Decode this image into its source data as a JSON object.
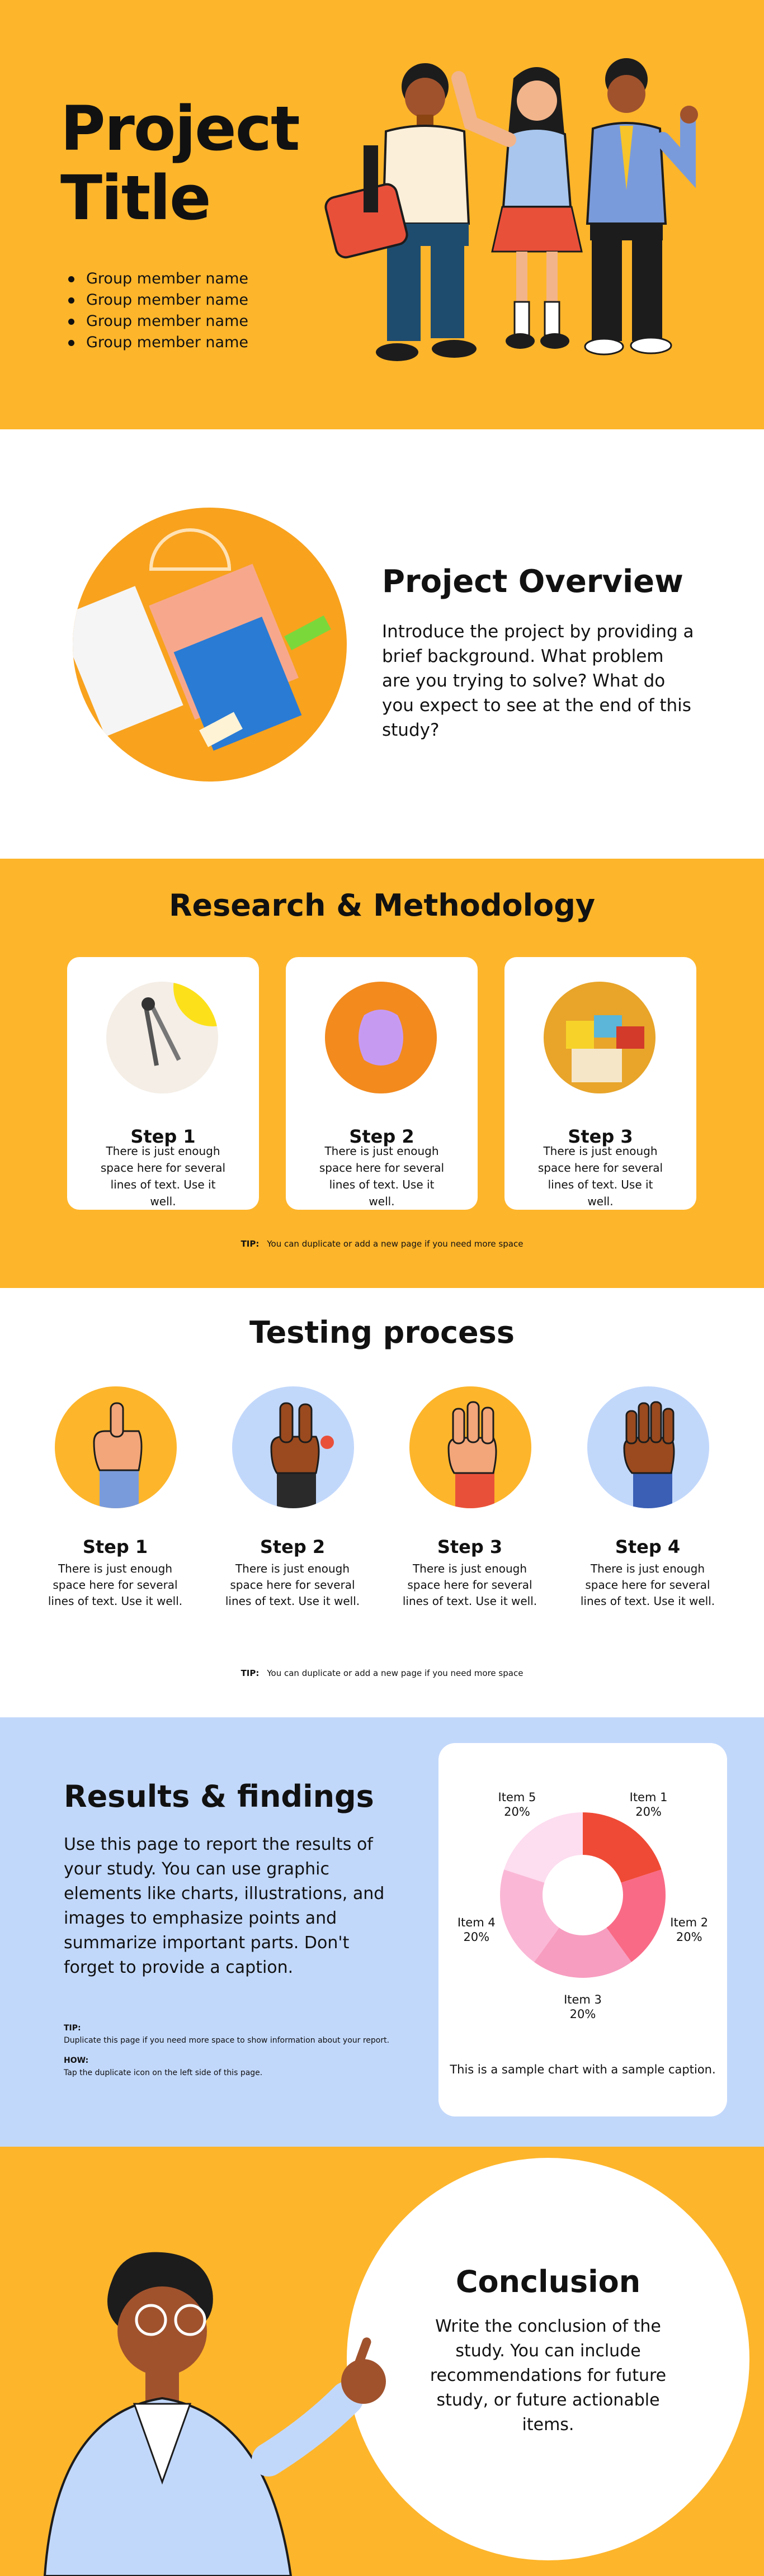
{
  "hero": {
    "title_line1": "Project",
    "title_line2": "Title",
    "members": [
      "Group member name",
      "Group member name",
      "Group member name",
      "Group member name"
    ]
  },
  "overview": {
    "title": "Project Overview",
    "text": "Introduce the project by providing a brief background. What problem are you trying to solve? What do you expect to see at the end of this study?"
  },
  "research": {
    "title": "Research & Methodology",
    "steps": [
      {
        "label": "Step 1",
        "text": "There is just enough space here for several lines of text. Use it well."
      },
      {
        "label": "Step 2",
        "text": "There is just enough space here for several lines of text. Use it well."
      },
      {
        "label": "Step 3",
        "text": "There is just enough space here for several lines of text. Use it well."
      }
    ],
    "tip_label": "TIP:",
    "tip_text": "You can duplicate or add a new page if you need more space"
  },
  "testing": {
    "title": "Testing process",
    "steps": [
      {
        "label": "Step 1",
        "text": "There is just enough space here for several lines of text. Use it well."
      },
      {
        "label": "Step 2",
        "text": "There is just enough space here for several lines of text. Use it well."
      },
      {
        "label": "Step 3",
        "text": "There is just enough space here for several lines of text. Use it well."
      },
      {
        "label": "Step 4",
        "text": "There is just enough space here for several lines of text. Use it well."
      }
    ],
    "tip_label": "TIP:",
    "tip_text": "You can duplicate or add a new page if you need more space"
  },
  "results": {
    "title": "Results & findings",
    "text": "Use this page to report the results of your study. You can use graphic elements like charts, illustrations, and images to emphasize points and summarize important parts. Don't forget to provide a caption.",
    "tip_label": "TIP:",
    "tip_text": "Duplicate this page if you need more space to show information about your report.",
    "how_label": "HOW:",
    "how_text": "Tap the duplicate icon on the left side of this page.",
    "caption": "This is a sample chart with a sample caption."
  },
  "chart_data": {
    "type": "pie",
    "categories": [
      "Item 1",
      "Item 2",
      "Item 3",
      "Item 4",
      "Item 5"
    ],
    "values": [
      20,
      20,
      20,
      20,
      20
    ],
    "value_labels": [
      "20%",
      "20%",
      "20%",
      "20%",
      "20%"
    ],
    "colors": [
      "#EF4A36",
      "#F96A86",
      "#F79DC0",
      "#FAB8D6",
      "#FDDDF0"
    ]
  },
  "conclusion": {
    "title": "Conclusion",
    "text": "Write the conclusion of the study. You can include recommendations for future study, or future actionable items."
  }
}
